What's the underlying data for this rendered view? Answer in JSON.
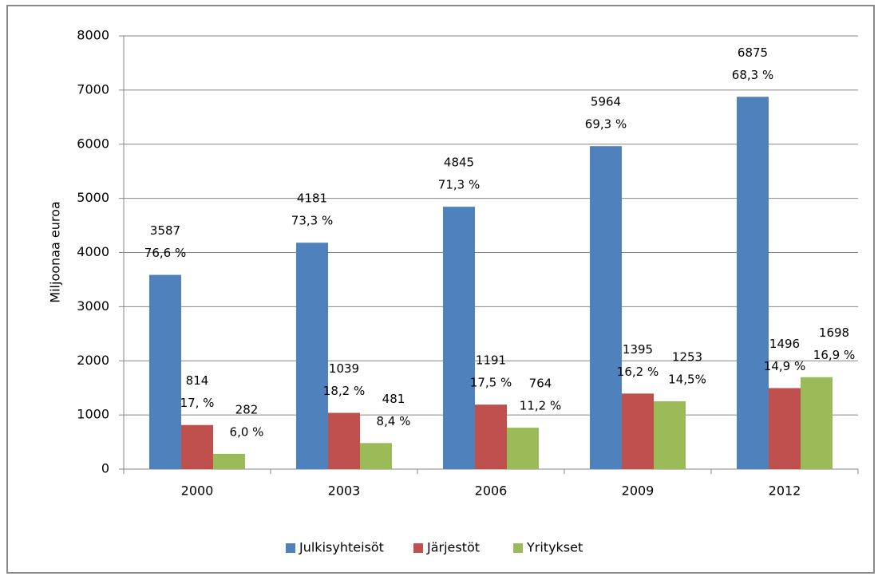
{
  "chart_data": {
    "type": "bar",
    "y_label": "Miljoonaa euroa",
    "categories": [
      "2000",
      "2003",
      "2006",
      "2009",
      "2012"
    ],
    "series": [
      {
        "name": "Julkisyhteisöt",
        "color": "#4f81bd",
        "values": [
          3587,
          4181,
          4845,
          5964,
          6875
        ],
        "share_labels": [
          "76,6 %",
          "73,3 %",
          "71,3 %",
          "69,3 %",
          "68,3 %"
        ]
      },
      {
        "name": "Järjestöt",
        "color": "#c0504d",
        "values": [
          814,
          1039,
          1191,
          1395,
          1496
        ],
        "share_labels": [
          "17, %",
          "18,2 %",
          "17,5 %",
          "16,2 %",
          "14,9 %"
        ]
      },
      {
        "name": "Yritykset",
        "color": "#9bbb59",
        "values": [
          282,
          481,
          764,
          1253,
          1698
        ],
        "share_labels": [
          "6,0 %",
          "8,4 %",
          "11,2 %",
          "14,5%",
          "16,9 %"
        ]
      }
    ],
    "ylim": [
      0,
      8000
    ],
    "yticks": [
      0,
      1000,
      2000,
      3000,
      4000,
      5000,
      6000,
      7000,
      8000
    ],
    "grid": true,
    "legend": "bottom"
  }
}
